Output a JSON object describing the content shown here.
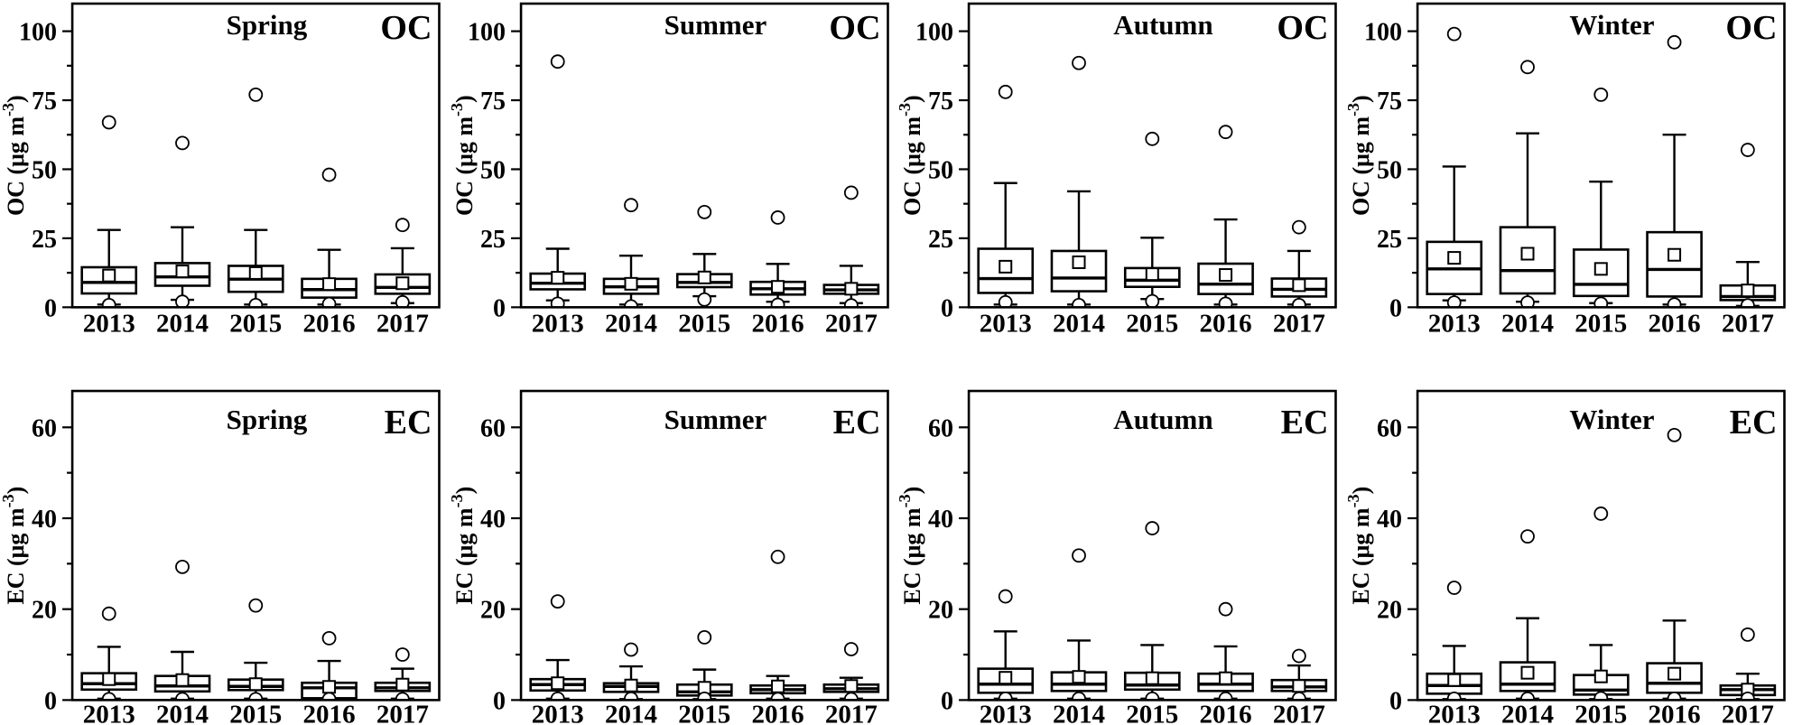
{
  "figure": {
    "background_color": "#ffffff",
    "ink_color": "#000000",
    "rows": [
      "OC",
      "EC"
    ],
    "columns": [
      "Spring",
      "Summer",
      "Autumn",
      "Winter"
    ],
    "categories": [
      "2013",
      "2014",
      "2015",
      "2016",
      "2017"
    ],
    "marker_legend": {
      "open_square": "mean",
      "open_circle": "outlier",
      "box": "interquartile range with median line",
      "whiskers": "capped min-max whiskers"
    }
  },
  "chart_data": [
    {
      "id": "oc-spring",
      "type": "box",
      "measure": "OC",
      "season": "Spring",
      "title": "Spring",
      "corner_label": "OC",
      "ylabel": "OC (μg m⁻³)",
      "ylabel_parts": {
        "base": "OC (μg m",
        "sup": "-3",
        "end": ")"
      },
      "ylim": [
        0,
        110
      ],
      "yticks": [
        {
          "v": 0,
          "label": "0"
        },
        {
          "v": 25,
          "label": "25"
        },
        {
          "v": 50,
          "label": "50"
        },
        {
          "v": 75,
          "label": "75"
        },
        {
          "v": 100,
          "label": "100"
        }
      ],
      "yticks_minor": [
        12.5,
        37.5,
        62.5,
        87.5
      ],
      "boxes": [
        {
          "category": "2013",
          "whisker_low": 1.0,
          "q1": 5.0,
          "median": 9.0,
          "q3": 14.5,
          "whisker_high": 28.0,
          "mean": 11.5,
          "outliers_high": [
            67.0
          ],
          "outliers_low": [
            0.8
          ]
        },
        {
          "category": "2014",
          "whisker_low": 2.7,
          "q1": 7.8,
          "median": 11.0,
          "q3": 16.0,
          "whisker_high": 29.0,
          "mean": 13.0,
          "outliers_high": [
            59.5
          ],
          "outliers_low": [
            2.0
          ]
        },
        {
          "category": "2015",
          "whisker_low": 1.0,
          "q1": 5.6,
          "median": 10.2,
          "q3": 15.0,
          "whisker_high": 28.0,
          "mean": 12.4,
          "outliers_high": [
            77.0
          ],
          "outliers_low": [
            0.8
          ]
        },
        {
          "category": "2016",
          "whisker_low": 1.0,
          "q1": 3.5,
          "median": 6.4,
          "q3": 10.3,
          "whisker_high": 20.8,
          "mean": 8.4,
          "outliers_high": [
            48.0
          ],
          "outliers_low": [
            1.2
          ]
        },
        {
          "category": "2017",
          "whisker_low": 1.5,
          "q1": 4.9,
          "median": 7.2,
          "q3": 11.9,
          "whisker_high": 21.4,
          "mean": 8.7,
          "outliers_high": [
            29.8
          ],
          "outliers_low": [
            1.8
          ]
        }
      ]
    },
    {
      "id": "oc-summer",
      "type": "box",
      "measure": "OC",
      "season": "Summer",
      "title": "Summer",
      "corner_label": "OC",
      "ylabel": "OC (μg m⁻³)",
      "ylabel_parts": {
        "base": "OC (μg m",
        "sup": "-3",
        "end": ")"
      },
      "ylim": [
        0,
        110
      ],
      "yticks": [
        {
          "v": 0,
          "label": "0"
        },
        {
          "v": 25,
          "label": "25"
        },
        {
          "v": 50,
          "label": "50"
        },
        {
          "v": 75,
          "label": "75"
        },
        {
          "v": 100,
          "label": "100"
        }
      ],
      "yticks_minor": [
        12.5,
        37.5,
        62.5,
        87.5
      ],
      "boxes": [
        {
          "category": "2013",
          "whisker_low": 2.5,
          "q1": 6.5,
          "median": 8.7,
          "q3": 12.2,
          "whisker_high": 21.2,
          "mean": 10.7,
          "outliers_high": [
            89.0
          ],
          "outliers_low": [
            1.3
          ]
        },
        {
          "category": "2014",
          "whisker_low": 1.0,
          "q1": 4.9,
          "median": 7.4,
          "q3": 10.3,
          "whisker_high": 18.7,
          "mean": 8.5,
          "outliers_high": [
            37.0
          ],
          "outliers_low": [
            0.3
          ]
        },
        {
          "category": "2015",
          "whisker_low": 4.0,
          "q1": 7.3,
          "median": 9.0,
          "q3": 12.0,
          "whisker_high": 19.3,
          "mean": 10.8,
          "outliers_high": [
            34.5
          ],
          "outliers_low": [
            2.8
          ]
        },
        {
          "category": "2016",
          "whisker_low": 2.0,
          "q1": 4.6,
          "median": 6.7,
          "q3": 9.2,
          "whisker_high": 15.7,
          "mean": 7.4,
          "outliers_high": [
            32.5
          ],
          "outliers_low": [
            0.9
          ]
        },
        {
          "category": "2017",
          "whisker_low": 1.5,
          "q1": 4.9,
          "median": 6.3,
          "q3": 8.1,
          "whisker_high": 15.0,
          "mean": 6.7,
          "outliers_high": [
            41.5
          ],
          "outliers_low": [
            0.7
          ]
        }
      ]
    },
    {
      "id": "oc-autumn",
      "type": "box",
      "measure": "OC",
      "season": "Autumn",
      "title": "Autumn",
      "corner_label": "OC",
      "ylabel": "OC (μg m⁻³)",
      "ylabel_parts": {
        "base": "OC (μg m",
        "sup": "-3",
        "end": ")"
      },
      "ylim": [
        0,
        110
      ],
      "yticks": [
        {
          "v": 0,
          "label": "0"
        },
        {
          "v": 25,
          "label": "25"
        },
        {
          "v": 50,
          "label": "50"
        },
        {
          "v": 75,
          "label": "75"
        },
        {
          "v": 100,
          "label": "100"
        }
      ],
      "yticks_minor": [
        12.5,
        37.5,
        62.5,
        87.5
      ],
      "boxes": [
        {
          "category": "2013",
          "whisker_low": 1.0,
          "q1": 5.2,
          "median": 10.4,
          "q3": 21.2,
          "whisker_high": 45.0,
          "mean": 14.7,
          "outliers_high": [
            78.0
          ],
          "outliers_low": [
            1.8
          ]
        },
        {
          "category": "2014",
          "whisker_low": 1.0,
          "q1": 5.8,
          "median": 10.6,
          "q3": 20.4,
          "whisker_high": 42.0,
          "mean": 16.3,
          "outliers_high": [
            88.5
          ],
          "outliers_low": [
            0.8
          ]
        },
        {
          "category": "2015",
          "whisker_low": 3.0,
          "q1": 7.4,
          "median": 9.8,
          "q3": 14.2,
          "whisker_high": 25.2,
          "mean": 12.0,
          "outliers_high": [
            61.0
          ],
          "outliers_low": [
            2.2
          ]
        },
        {
          "category": "2016",
          "whisker_low": 1.0,
          "q1": 4.8,
          "median": 8.4,
          "q3": 15.8,
          "whisker_high": 31.8,
          "mean": 11.7,
          "outliers_high": [
            63.5
          ],
          "outliers_low": [
            1.3
          ]
        },
        {
          "category": "2017",
          "whisker_low": 1.0,
          "q1": 3.9,
          "median": 6.5,
          "q3": 10.4,
          "whisker_high": 20.4,
          "mean": 8.0,
          "outliers_high": [
            29.0
          ],
          "outliers_low": [
            0.8
          ]
        }
      ]
    },
    {
      "id": "oc-winter",
      "type": "box",
      "measure": "OC",
      "season": "Winter",
      "title": "Winter",
      "corner_label": "OC",
      "ylabel": "OC (μg m⁻³)",
      "ylabel_parts": {
        "base": "OC (μg m",
        "sup": "-3",
        "end": ")"
      },
      "ylim": [
        0,
        110
      ],
      "yticks": [
        {
          "v": 0,
          "label": "0"
        },
        {
          "v": 25,
          "label": "25"
        },
        {
          "v": 50,
          "label": "50"
        },
        {
          "v": 75,
          "label": "75"
        },
        {
          "v": 100,
          "label": "100"
        }
      ],
      "yticks_minor": [
        12.5,
        37.5,
        62.5,
        87.5
      ],
      "boxes": [
        {
          "category": "2013",
          "whisker_low": 2.5,
          "q1": 4.8,
          "median": 13.9,
          "q3": 23.7,
          "whisker_high": 51.0,
          "mean": 17.9,
          "outliers_high": [
            99.0
          ],
          "outliers_low": [
            1.7
          ]
        },
        {
          "category": "2014",
          "whisker_low": 2.0,
          "q1": 5.0,
          "median": 13.3,
          "q3": 29.0,
          "whisker_high": 63.0,
          "mean": 19.4,
          "outliers_high": [
            87.0
          ],
          "outliers_low": [
            1.7
          ]
        },
        {
          "category": "2015",
          "whisker_low": 1.5,
          "q1": 4.1,
          "median": 8.3,
          "q3": 20.9,
          "whisker_high": 45.5,
          "mean": 13.9,
          "outliers_high": [
            77.0
          ],
          "outliers_low": [
            1.3
          ]
        },
        {
          "category": "2016",
          "whisker_low": 1.0,
          "q1": 3.9,
          "median": 13.7,
          "q3": 27.2,
          "whisker_high": 62.5,
          "mean": 19.0,
          "outliers_high": [
            96.0
          ],
          "outliers_low": [
            1.0
          ]
        },
        {
          "category": "2017",
          "whisker_low": 0.5,
          "q1": 2.6,
          "median": 3.9,
          "q3": 7.9,
          "whisker_high": 16.4,
          "mean": 6.1,
          "outliers_high": [
            57.0
          ],
          "outliers_low": [
            0.7
          ]
        }
      ]
    },
    {
      "id": "ec-spring",
      "type": "box",
      "measure": "EC",
      "season": "Spring",
      "title": "Spring",
      "corner_label": "EC",
      "ylabel": "EC (μg m⁻³)",
      "ylabel_parts": {
        "base": "EC (μg m",
        "sup": "-3",
        "end": ")"
      },
      "ylim": [
        0,
        68
      ],
      "yticks": [
        {
          "v": 0,
          "label": "0"
        },
        {
          "v": 20,
          "label": "20"
        },
        {
          "v": 40,
          "label": "40"
        },
        {
          "v": 60,
          "label": "60"
        }
      ],
      "yticks_minor": [
        10,
        30,
        50
      ],
      "boxes": [
        {
          "category": "2013",
          "whisker_low": 0.3,
          "q1": 2.3,
          "median": 3.6,
          "q3": 5.9,
          "whisker_high": 11.7,
          "mean": 4.6,
          "outliers_high": [
            19.0
          ],
          "outliers_low": [
            0.2
          ]
        },
        {
          "category": "2014",
          "whisker_low": 0.3,
          "q1": 1.9,
          "median": 3.1,
          "q3": 5.3,
          "whisker_high": 10.6,
          "mean": 4.4,
          "outliers_high": [
            29.3
          ],
          "outliers_low": [
            0.2
          ]
        },
        {
          "category": "2015",
          "whisker_low": 0.3,
          "q1": 2.2,
          "median": 3.0,
          "q3": 4.5,
          "whisker_high": 8.2,
          "mean": 3.5,
          "outliers_high": [
            20.8
          ],
          "outliers_low": [
            0.2
          ]
        },
        {
          "category": "2016",
          "whisker_low": 0.2,
          "q1": 0.4,
          "median": 2.7,
          "q3": 3.8,
          "whisker_high": 8.6,
          "mean": 2.9,
          "outliers_high": [
            13.6
          ],
          "outliers_low": [
            0.2
          ]
        },
        {
          "category": "2017",
          "whisker_low": 0.3,
          "q1": 2.0,
          "median": 2.7,
          "q3": 3.8,
          "whisker_high": 6.9,
          "mean": 3.4,
          "outliers_high": [
            10.0
          ],
          "outliers_low": [
            0.2
          ]
        }
      ]
    },
    {
      "id": "ec-summer",
      "type": "box",
      "measure": "EC",
      "season": "Summer",
      "title": "Summer",
      "corner_label": "EC",
      "ylabel": "EC (μg m⁻³)",
      "ylabel_parts": {
        "base": "EC (μg m",
        "sup": "-3",
        "end": ")"
      },
      "ylim": [
        0,
        68
      ],
      "yticks": [
        {
          "v": 0,
          "label": "0"
        },
        {
          "v": 20,
          "label": "20"
        },
        {
          "v": 40,
          "label": "40"
        },
        {
          "v": 60,
          "label": "60"
        }
      ],
      "yticks_minor": [
        10,
        30,
        50
      ],
      "boxes": [
        {
          "category": "2013",
          "whisker_low": 0.3,
          "q1": 2.1,
          "median": 3.4,
          "q3": 4.6,
          "whisker_high": 8.8,
          "mean": 3.7,
          "outliers_high": [
            21.7
          ],
          "outliers_low": [
            0.3
          ]
        },
        {
          "category": "2014",
          "whisker_low": 0.2,
          "q1": 1.8,
          "median": 3.0,
          "q3": 3.7,
          "whisker_high": 7.4,
          "mean": 3.2,
          "outliers_high": [
            11.1
          ],
          "outliers_low": [
            0.3
          ]
        },
        {
          "category": "2015",
          "whisker_low": 0.2,
          "q1": 1.0,
          "median": 1.8,
          "q3": 3.4,
          "whisker_high": 6.7,
          "mean": 2.7,
          "outliers_high": [
            13.8
          ],
          "outliers_low": [
            0.3
          ]
        },
        {
          "category": "2016",
          "whisker_low": 0.3,
          "q1": 1.5,
          "median": 2.3,
          "q3": 3.2,
          "whisker_high": 5.3,
          "mean": 3.0,
          "outliers_high": [
            31.5
          ],
          "outliers_low": [
            0.2
          ]
        },
        {
          "category": "2017",
          "whisker_low": 0.3,
          "q1": 1.8,
          "median": 2.5,
          "q3": 3.4,
          "whisker_high": 4.9,
          "mean": 3.1,
          "outliers_high": [
            11.2
          ],
          "outliers_low": [
            0.2
          ]
        }
      ]
    },
    {
      "id": "ec-autumn",
      "type": "box",
      "measure": "EC",
      "season": "Autumn",
      "title": "Autumn",
      "corner_label": "EC",
      "ylabel": "EC (μg m⁻³)",
      "ylabel_parts": {
        "base": "EC (μg m",
        "sup": "-3",
        "end": ")"
      },
      "ylim": [
        0,
        68
      ],
      "yticks": [
        {
          "v": 0,
          "label": "0"
        },
        {
          "v": 20,
          "label": "20"
        },
        {
          "v": 40,
          "label": "40"
        },
        {
          "v": 60,
          "label": "60"
        }
      ],
      "yticks_minor": [
        10,
        30,
        50
      ],
      "boxes": [
        {
          "category": "2013",
          "whisker_low": 0.3,
          "q1": 1.6,
          "median": 3.5,
          "q3": 6.9,
          "whisker_high": 15.1,
          "mean": 4.9,
          "outliers_high": [
            22.8
          ],
          "outliers_low": [
            0.3
          ]
        },
        {
          "category": "2014",
          "whisker_low": 0.3,
          "q1": 2.0,
          "median": 3.5,
          "q3": 6.1,
          "whisker_high": 13.1,
          "mean": 5.1,
          "outliers_high": [
            31.8
          ],
          "outliers_low": [
            0.3
          ]
        },
        {
          "category": "2015",
          "whisker_low": 0.3,
          "q1": 2.3,
          "median": 3.3,
          "q3": 6.0,
          "whisker_high": 12.1,
          "mean": 4.8,
          "outliers_high": [
            37.8
          ],
          "outliers_low": [
            0.3
          ]
        },
        {
          "category": "2016",
          "whisker_low": 0.3,
          "q1": 2.0,
          "median": 3.5,
          "q3": 5.8,
          "whisker_high": 11.8,
          "mean": 4.8,
          "outliers_high": [
            20.0
          ],
          "outliers_low": [
            0.3
          ]
        },
        {
          "category": "2017",
          "whisker_low": 0.3,
          "q1": 2.0,
          "median": 2.9,
          "q3": 4.4,
          "whisker_high": 7.6,
          "mean": 3.1,
          "outliers_high": [
            9.7
          ],
          "outliers_low": [
            0.3
          ]
        }
      ]
    },
    {
      "id": "ec-winter",
      "type": "box",
      "measure": "EC",
      "season": "Winter",
      "title": "Winter",
      "corner_label": "EC",
      "ylabel": "EC (μg m⁻³)",
      "ylabel_parts": {
        "base": "EC (μg m",
        "sup": "-3",
        "end": ")"
      },
      "ylim": [
        0,
        68
      ],
      "yticks": [
        {
          "v": 0,
          "label": "0"
        },
        {
          "v": 20,
          "label": "20"
        },
        {
          "v": 40,
          "label": "40"
        },
        {
          "v": 60,
          "label": "60"
        }
      ],
      "yticks_minor": [
        10,
        30,
        50
      ],
      "boxes": [
        {
          "category": "2013",
          "whisker_low": 0.2,
          "q1": 1.4,
          "median": 3.2,
          "q3": 5.8,
          "whisker_high": 11.9,
          "mean": 4.4,
          "outliers_high": [
            24.7
          ],
          "outliers_low": [
            0.3
          ]
        },
        {
          "category": "2014",
          "whisker_low": 0.3,
          "q1": 2.0,
          "median": 3.5,
          "q3": 8.3,
          "whisker_high": 18.0,
          "mean": 6.0,
          "outliers_high": [
            36.0
          ],
          "outliers_low": [
            0.3
          ]
        },
        {
          "category": "2015",
          "whisker_low": 0.2,
          "q1": 1.2,
          "median": 2.2,
          "q3": 5.5,
          "whisker_high": 12.1,
          "mean": 5.2,
          "outliers_high": [
            41.0
          ],
          "outliers_low": [
            0.4
          ]
        },
        {
          "category": "2016",
          "whisker_low": 0.3,
          "q1": 1.6,
          "median": 3.7,
          "q3": 8.1,
          "whisker_high": 17.5,
          "mean": 5.8,
          "outliers_high": [
            58.3
          ],
          "outliers_low": [
            0.3
          ]
        },
        {
          "category": "2017",
          "whisker_low": 0.2,
          "q1": 1.1,
          "median": 2.3,
          "q3": 3.2,
          "whisker_high": 5.8,
          "mean": 2.3,
          "outliers_high": [
            14.4
          ],
          "outliers_low": [
            0.3
          ]
        }
      ]
    }
  ]
}
